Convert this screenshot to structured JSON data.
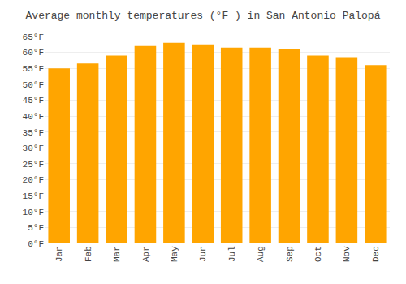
{
  "chart_data": {
    "type": "bar",
    "title": "Average monthly temperatures (°F ) in San Antonio Palopá",
    "categories": [
      "Jan",
      "Feb",
      "Mar",
      "Apr",
      "May",
      "Jun",
      "Jul",
      "Aug",
      "Sep",
      "Oct",
      "Nov",
      "Dec"
    ],
    "values": [
      55,
      56.5,
      59,
      62,
      63,
      62.5,
      61.5,
      61.5,
      61,
      59,
      58.5,
      56
    ],
    "color": "#FFA500",
    "ylim": [
      0,
      65
    ],
    "yticks": [
      {
        "value": 0,
        "label": "0°F"
      },
      {
        "value": 5,
        "label": "5°F"
      },
      {
        "value": 10,
        "label": "10°F"
      },
      {
        "value": 15,
        "label": "15°F"
      },
      {
        "value": 20,
        "label": "20°F"
      },
      {
        "value": 25,
        "label": "25°F"
      },
      {
        "value": 30,
        "label": "30°F"
      },
      {
        "value": 35,
        "label": "35°F"
      },
      {
        "value": 40,
        "label": "40°F"
      },
      {
        "value": 45,
        "label": "45°F"
      },
      {
        "value": 50,
        "label": "50°F"
      },
      {
        "value": 55,
        "label": "55°F"
      },
      {
        "value": 60,
        "label": "60°F"
      },
      {
        "value": 65,
        "label": "65°F"
      }
    ],
    "grid": true
  }
}
